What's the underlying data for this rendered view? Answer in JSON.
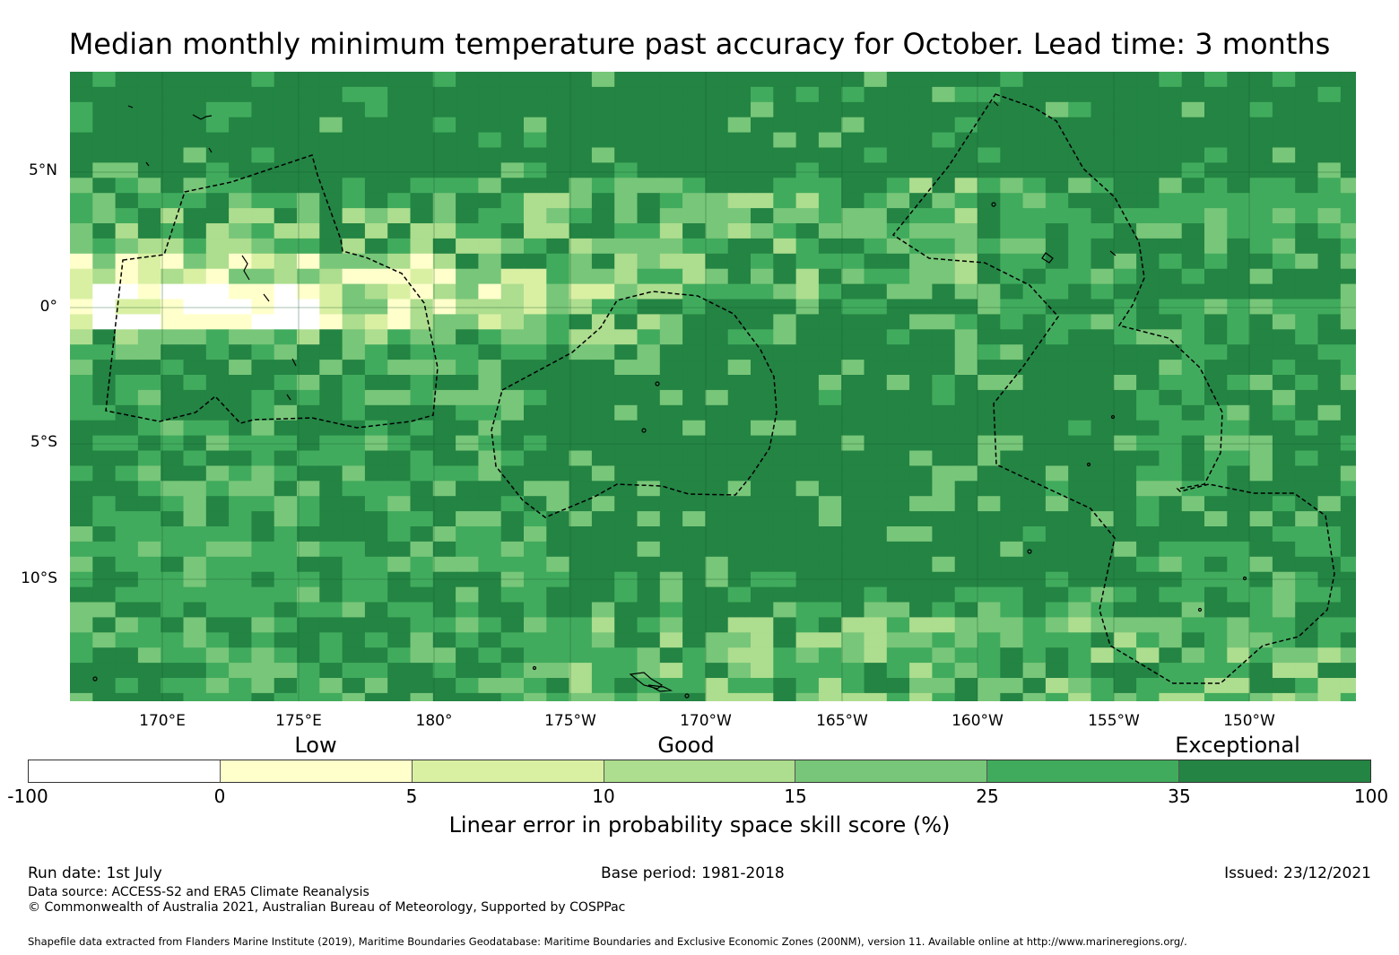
{
  "title": "Median monthly minimum temperature past accuracy for October. Lead time: 3 months",
  "map": {
    "lon_ticks": [
      "170°E",
      "175°E",
      "180°",
      "175°W",
      "170°W",
      "165°W",
      "160°W",
      "155°W",
      "150°W"
    ],
    "lat_ticks": [
      "5°N",
      "0°",
      "5°S",
      "10°S"
    ],
    "extent": {
      "lon_min": 166.6,
      "lon_max": 213.9,
      "lat_min": -14.6,
      "lat_max": 8.6
    }
  },
  "legend": {
    "categories": [
      "Low",
      "Good",
      "Exceptional"
    ],
    "bounds": [
      "-100",
      "0",
      "5",
      "10",
      "15",
      "25",
      "35",
      "100"
    ],
    "colors": [
      "#ffffff",
      "#ffffcc",
      "#d9f0a3",
      "#addd8e",
      "#78c679",
      "#41ab5d",
      "#238443"
    ],
    "label": "Linear error in probability space skill score (%)"
  },
  "footer": {
    "run_date": "Run date: 1st July",
    "base_period": "Base period: 1981-2018",
    "issued": "Issued: 23/12/2021",
    "data_source": "Data source: ACCESS-S2 and ERA5 Climate Reanalysis",
    "copyright": "© Commonwealth of Australia 2021, Australian Bureau of Meteorology, Supported by COSPPac",
    "shapefile": "Shapefile data extracted from Flanders Marine Institute (2019), Maritime Boundaries Geodatabase: Maritime Boundaries and Exclusive Economic Zones (200NM), version 11. Available online at http://www.marineregions.org/."
  }
}
